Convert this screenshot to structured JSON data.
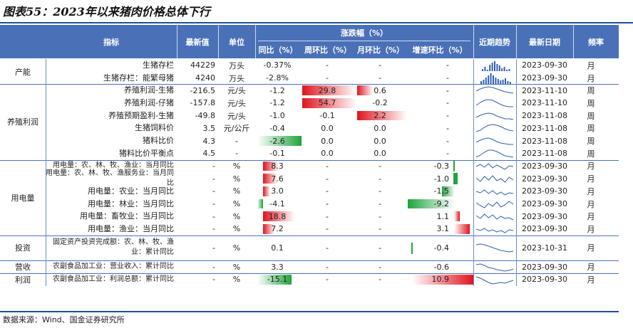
{
  "title": "图表55：2023年以来猪肉价格总体下行",
  "header": {
    "indicator": "指标",
    "latest": "最新值",
    "unit": "单位",
    "change_group": "涨跌幅（%）",
    "yoy": "同比（%）",
    "wow": "周环比（%）",
    "mom": "月环比（%）",
    "accel": "增速环比（%）",
    "trend": "近期趋势",
    "date": "最新日期",
    "freq": "频率"
  },
  "groups": [
    {
      "label": "产能"
    },
    {
      "label": "养殖利润"
    },
    {
      "label": "用电量"
    },
    {
      "label": "投资"
    },
    {
      "label": "营收"
    },
    {
      "label": "利润"
    }
  ],
  "rows": [
    {
      "name": "生猪存栏",
      "latest": "44229",
      "unit": "万头",
      "yoy": "-0.37%",
      "wow": "-",
      "mom": "-",
      "accel": "-",
      "date": "2023-09-30",
      "freq": "月"
    },
    {
      "name": "生猪存栏：能繁母猪",
      "latest": "4240",
      "unit": "万头",
      "yoy": "-2.8%",
      "wow": "-",
      "mom": "-",
      "accel": "-",
      "date": "2023-09-30",
      "freq": "月"
    },
    {
      "name": "养殖利润-生猪",
      "latest": "-216.5",
      "unit": "元/头",
      "yoy": "-1.2",
      "wow": "29.8",
      "mom": "0.6",
      "accel": "-",
      "date": "2023-11-10",
      "freq": "周"
    },
    {
      "name": "养殖利润-仔猪",
      "latest": "-157.8",
      "unit": "元/头",
      "yoy": "-1.2",
      "wow": "54.7",
      "mom": "-0.2",
      "accel": "-",
      "date": "2023-11-10",
      "freq": "周"
    },
    {
      "name": "养殖预期盈利-生猪",
      "latest": "-49.8",
      "unit": "元/头",
      "yoy": "-1.0",
      "wow": "-0.1",
      "mom": "2.2",
      "accel": "-",
      "date": "2023-11-08",
      "freq": "周"
    },
    {
      "name": "生猪饲料价",
      "latest": "3.5",
      "unit": "元/公斤",
      "yoy": "-0.4",
      "wow": "0.0",
      "mom": "0.0",
      "accel": "-",
      "date": "2023-11-08",
      "freq": "周"
    },
    {
      "name": "猪料比价",
      "latest": "4.3",
      "unit": "-",
      "yoy": "-2.6",
      "wow": "0.0",
      "mom": "0.0",
      "accel": "-",
      "date": "2023-11-08",
      "freq": "周"
    },
    {
      "name": "猪料比价平衡点",
      "latest": "4.5",
      "unit": "-",
      "yoy": "-0.1",
      "wow": "0.0",
      "mom": "0.0",
      "accel": "-",
      "date": "2023-11-08",
      "freq": "周"
    },
    {
      "name": "用电量：农、林、牧、渔业：当月同比",
      "latest": "-",
      "unit": "%",
      "yoy": "8.3",
      "wow": "-",
      "mom": "-",
      "accel": "-0.3",
      "date": "2023-09-30",
      "freq": "月"
    },
    {
      "name": "用电量：农、林、牧、渔服务业：当月同比",
      "latest": "-",
      "unit": "%",
      "yoy": "7.6",
      "wow": "-",
      "mom": "-",
      "accel": "-1.0",
      "date": "2023-09-30",
      "freq": "月"
    },
    {
      "name": "用电量：农业：当月同比",
      "latest": "-",
      "unit": "%",
      "yoy": "3.0",
      "wow": "-",
      "mom": "-",
      "accel": "-1.5",
      "date": "2023-09-30",
      "freq": "月"
    },
    {
      "name": "用电量：林业：当月同比",
      "latest": "-",
      "unit": "%",
      "yoy": "-4.1",
      "wow": "-",
      "mom": "-",
      "accel": "-9.2",
      "date": "2023-09-30",
      "freq": "月"
    },
    {
      "name": "用电量：畜牧业：当月同比",
      "latest": "-",
      "unit": "%",
      "yoy": "18.8",
      "wow": "-",
      "mom": "-",
      "accel": "1.1",
      "date": "2023-09-30",
      "freq": "月"
    },
    {
      "name": "用电量：渔业：当月同比",
      "latest": "-",
      "unit": "%",
      "yoy": "7.2",
      "wow": "-",
      "mom": "-",
      "accel": "3.1",
      "date": "2023-09-30",
      "freq": "月"
    },
    {
      "name": "固定资产投资完成额：农、林、牧、渔业：累计同比",
      "latest": "-",
      "unit": "%",
      "yoy": "0.1",
      "wow": "-",
      "mom": "-",
      "accel": "-0.4",
      "date": "2023-10-31",
      "freq": "月"
    },
    {
      "name": "农副食品加工业：营业收入：累计同比",
      "latest": "-",
      "unit": "%",
      "yoy": "3.3",
      "wow": "-",
      "mom": "-",
      "accel": "-0.6",
      "date": "2023-09-30",
      "freq": "月"
    },
    {
      "name": "农副食品加工业：利润总额：累计同比",
      "latest": "-",
      "unit": "%",
      "yoy": "-15.1",
      "wow": "-",
      "mom": "-",
      "accel": "10.9",
      "date": "2023-09-30",
      "freq": "月"
    }
  ],
  "source": "数据来源：Wind、国金证券研究所",
  "colors": {
    "header_bg": "#4a71b8",
    "positive": "#e0141e",
    "negative": "#1fa43c"
  }
}
